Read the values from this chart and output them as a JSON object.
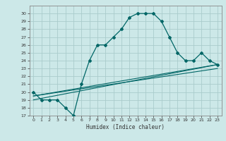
{
  "title": "",
  "xlabel": "Humidex (Indice chaleur)",
  "ylabel": "",
  "bg_color": "#cce8e8",
  "grid_color": "#aacccc",
  "line_color": "#006666",
  "xlim": [
    -0.5,
    23.5
  ],
  "ylim": [
    17,
    31
  ],
  "yticks": [
    17,
    18,
    19,
    20,
    21,
    22,
    23,
    24,
    25,
    26,
    27,
    28,
    29,
    30
  ],
  "xticks": [
    0,
    1,
    2,
    3,
    4,
    5,
    6,
    7,
    8,
    9,
    10,
    11,
    12,
    13,
    14,
    15,
    16,
    17,
    18,
    19,
    20,
    21,
    22,
    23
  ],
  "main_x": [
    0,
    1,
    2,
    3,
    4,
    5,
    6,
    7,
    8,
    9,
    10,
    11,
    12,
    13,
    14,
    15,
    16,
    17,
    18,
    19,
    20,
    21,
    22,
    23
  ],
  "main_y": [
    20,
    19,
    19,
    19,
    18,
    17,
    21,
    24,
    26,
    26,
    27,
    28,
    29.5,
    30,
    30,
    30,
    29,
    27,
    25,
    24,
    24,
    25,
    24,
    23.5
  ],
  "line1_x": [
    0,
    23
  ],
  "line1_y": [
    19.5,
    23.5
  ],
  "line2_x": [
    0,
    23
  ],
  "line2_y": [
    19.5,
    23.0
  ],
  "line3_x": [
    0,
    23
  ],
  "line3_y": [
    19.0,
    23.5
  ]
}
